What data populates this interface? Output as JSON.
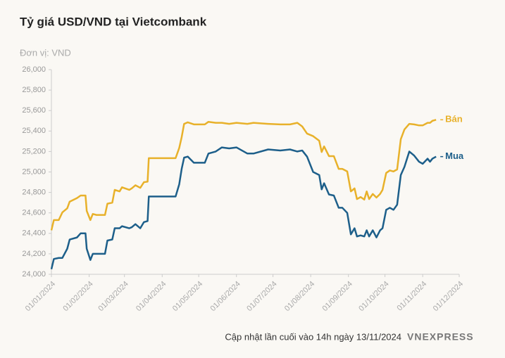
{
  "chart_data": {
    "type": "line",
    "title": "Tỷ giá USD/VND tại Vietcombank",
    "y_label": "Đơn vị: VND",
    "x": [
      "2024-01-01",
      "2024-01-03",
      "2024-01-07",
      "2024-01-10",
      "2024-01-14",
      "2024-01-16",
      "2024-01-22",
      "2024-01-25",
      "2024-01-29",
      "2024-01-30",
      "2024-02-02",
      "2024-02-04",
      "2024-02-07",
      "2024-02-14",
      "2024-02-16",
      "2024-02-20",
      "2024-02-22",
      "2024-02-26",
      "2024-02-28",
      "2024-03-05",
      "2024-03-07",
      "2024-03-10",
      "2024-03-14",
      "2024-03-17",
      "2024-03-20",
      "2024-03-21",
      "2024-03-30",
      "2024-04-05",
      "2024-04-12",
      "2024-04-15",
      "2024-04-17",
      "2024-04-19",
      "2024-04-22",
      "2024-04-27",
      "2024-05-06",
      "2024-05-09",
      "2024-05-15",
      "2024-05-20",
      "2024-05-26",
      "2024-06-01",
      "2024-06-10",
      "2024-06-15",
      "2024-06-27",
      "2024-07-07",
      "2024-07-15",
      "2024-07-21",
      "2024-07-25",
      "2024-07-29",
      "2024-08-03",
      "2024-08-08",
      "2024-08-10",
      "2024-08-12",
      "2024-08-16",
      "2024-08-20",
      "2024-08-24",
      "2024-08-27",
      "2024-08-31",
      "2024-09-03",
      "2024-09-06",
      "2024-09-08",
      "2024-09-11",
      "2024-09-14",
      "2024-09-16",
      "2024-09-18",
      "2024-09-21",
      "2024-09-24",
      "2024-09-27",
      "2024-09-29",
      "2024-10-02",
      "2024-10-05",
      "2024-10-08",
      "2024-10-11",
      "2024-10-14",
      "2024-10-17",
      "2024-10-21",
      "2024-10-25",
      "2024-10-29",
      "2024-11-01",
      "2024-11-05",
      "2024-11-07",
      "2024-11-09",
      "2024-11-12"
    ],
    "series": [
      {
        "name": "Bán",
        "color": "#e8b12a",
        "values": [
          24430,
          24530,
          24530,
          24605,
          24645,
          24710,
          24745,
          24770,
          24770,
          24620,
          24530,
          24590,
          24580,
          24580,
          24690,
          24700,
          24825,
          24810,
          24850,
          24825,
          24840,
          24870,
          24845,
          24900,
          24905,
          25135,
          25135,
          25135,
          25135,
          25235,
          25340,
          25470,
          25485,
          25465,
          25465,
          25490,
          25480,
          25480,
          25470,
          25480,
          25470,
          25480,
          25470,
          25465,
          25465,
          25480,
          25445,
          25375,
          25350,
          25305,
          25195,
          25250,
          25155,
          25155,
          25030,
          25030,
          25005,
          24810,
          24840,
          24735,
          24755,
          24730,
          24810,
          24735,
          24785,
          24750,
          24785,
          24825,
          24990,
          25015,
          25005,
          25025,
          25320,
          25415,
          25470,
          25465,
          25455,
          25455,
          25480,
          25480,
          25500,
          25510
        ]
      },
      {
        "name": "Mua",
        "color": "#1d5f8a",
        "values": [
          24050,
          24150,
          24160,
          24160,
          24250,
          24340,
          24360,
          24400,
          24400,
          24250,
          24140,
          24200,
          24200,
          24200,
          24330,
          24340,
          24450,
          24450,
          24470,
          24450,
          24460,
          24490,
          24450,
          24510,
          24520,
          24760,
          24760,
          24760,
          24760,
          24880,
          25030,
          25140,
          25150,
          25090,
          25090,
          25180,
          25200,
          25240,
          25230,
          25240,
          25180,
          25180,
          25220,
          25210,
          25220,
          25200,
          25210,
          25150,
          25000,
          24970,
          24830,
          24890,
          24780,
          24770,
          24650,
          24650,
          24600,
          24390,
          24450,
          24370,
          24380,
          24370,
          24430,
          24370,
          24430,
          24360,
          24430,
          24450,
          24630,
          24650,
          24630,
          24680,
          24970,
          25050,
          25200,
          25160,
          25100,
          25080,
          25130,
          25100,
          25130,
          25150
        ]
      }
    ],
    "xlim": [
      "2024-01-01",
      "2024-12-01"
    ],
    "xticks": [
      {
        "value": "2024-01-01",
        "label": "01/01/2024"
      },
      {
        "value": "2024-02-01",
        "label": "01/02/2024"
      },
      {
        "value": "2024-03-01",
        "label": "01/03/2024"
      },
      {
        "value": "2024-04-01",
        "label": "01/04/2024"
      },
      {
        "value": "2024-05-01",
        "label": "01/05/2024"
      },
      {
        "value": "2024-06-01",
        "label": "01/06/2024"
      },
      {
        "value": "2024-07-01",
        "label": "01/07/2024"
      },
      {
        "value": "2024-08-01",
        "label": "01/08/2024"
      },
      {
        "value": "2024-09-01",
        "label": "01/09/2024"
      },
      {
        "value": "2024-10-01",
        "label": "01/10/2024"
      },
      {
        "value": "2024-11-01",
        "label": "01/11/2024"
      },
      {
        "value": "2024-12-01",
        "label": "01/12/2024"
      }
    ],
    "ylim": [
      24000,
      26000
    ],
    "yticks": [
      {
        "value": 24000,
        "label": "24,000"
      },
      {
        "value": 24200,
        "label": "24,200"
      },
      {
        "value": 24400,
        "label": "24,400"
      },
      {
        "value": 24600,
        "label": "24,600"
      },
      {
        "value": 24800,
        "label": "24,800"
      },
      {
        "value": 25000,
        "label": "25,000"
      },
      {
        "value": 25200,
        "label": "25,200"
      },
      {
        "value": 25400,
        "label": "25,400"
      },
      {
        "value": 25600,
        "label": "25,600"
      },
      {
        "value": 25800,
        "label": "25,800"
      },
      {
        "value": 26000,
        "label": "26,000"
      }
    ],
    "legend": "line-end"
  },
  "footer": {
    "note": "Cập nhật lần cuối vào 14h ngày 13/11/2024",
    "logo": "VNEXPRESS"
  }
}
